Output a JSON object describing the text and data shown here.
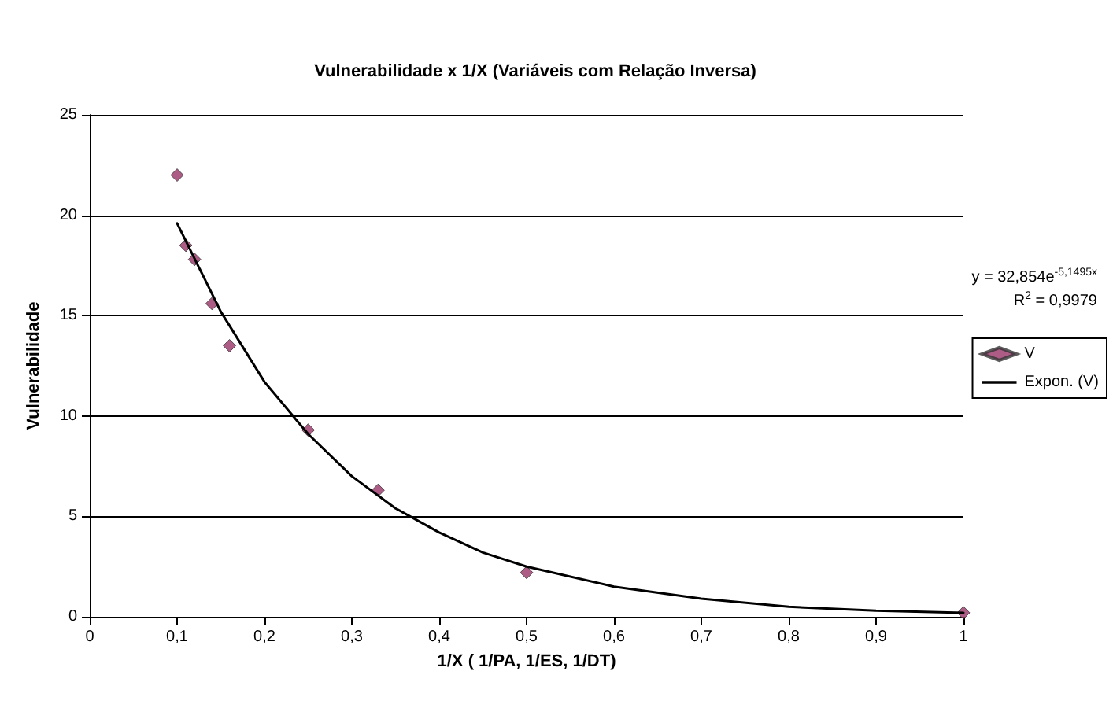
{
  "chart_data": {
    "type": "scatter",
    "title": "Vulnerabilidade x 1/X (Variáveis com Relação Inversa)",
    "xlabel": "1/X ( 1/PA, 1/ES, 1/DT)",
    "ylabel": "Vulnerabilidade",
    "series": [
      {
        "name": "V",
        "color": "#993366",
        "marker": "diamond",
        "x": [
          0.1,
          0.11,
          0.12,
          0.14,
          0.16,
          0.25,
          0.33,
          0.5,
          1
        ],
        "values": [
          22,
          18.5,
          17.8,
          15.6,
          13.5,
          9.3,
          6.3,
          2.2,
          0.2
        ]
      },
      {
        "name": "Expon. (V)",
        "type": "line",
        "color": "#000000",
        "marker": "none",
        "line_style": "solid",
        "x": [
          0.1,
          0.15,
          0.2,
          0.25,
          0.3,
          0.35,
          0.4,
          0.45,
          0.5,
          0.6,
          0.7,
          0.8,
          0.9,
          1
        ],
        "values": [
          19.6,
          15.2,
          11.7,
          9.1,
          7.0,
          5.4,
          4.2,
          3.2,
          2.5,
          1.5,
          0.9,
          0.5,
          0.3,
          0.2
        ]
      }
    ],
    "xlim": [
      0,
      1
    ],
    "xticks": [
      0,
      {
        "value": 0.1,
        "label": "0,1"
      },
      {
        "value": 0.2,
        "label": "0,2"
      },
      {
        "value": 0.3,
        "label": "0,3"
      },
      {
        "value": 0.4,
        "label": "0,4"
      },
      {
        "value": 0.5,
        "label": "0,5"
      },
      {
        "value": 0.6,
        "label": "0,6"
      },
      {
        "value": 0.7,
        "label": "0,7"
      },
      {
        "value": 0.8,
        "label": "0,8"
      },
      {
        "value": 0.9,
        "label": "0,9"
      },
      1
    ],
    "ylim": [
      0,
      25
    ],
    "yticks": [
      0,
      5,
      10,
      15,
      20,
      25
    ],
    "grid": "y",
    "legend": "right",
    "annotations": [
      "y = 32,854e$^{-5,1495x}$",
      "R$^{2}$ = 0,9979"
    ]
  }
}
